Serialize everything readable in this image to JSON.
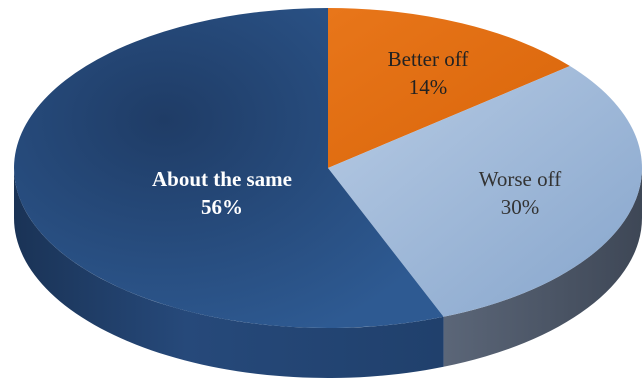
{
  "chart_data": {
    "type": "pie",
    "title": "",
    "legend": "none",
    "categories": [
      "Better off",
      "Worse off",
      "About the same"
    ],
    "values": [
      14,
      30,
      56
    ],
    "value_labels": [
      "14%",
      "30%",
      "56%"
    ],
    "colors": [
      "#e36c0a",
      "#95b3d7",
      "#2b4f82"
    ],
    "side_colors": [
      "#a84c05",
      "#4e5868",
      "#1f3a60"
    ],
    "label_colors": [
      "#222222",
      "#333333",
      "#ffffff"
    ],
    "label_bold": [
      false,
      false,
      true
    ]
  }
}
